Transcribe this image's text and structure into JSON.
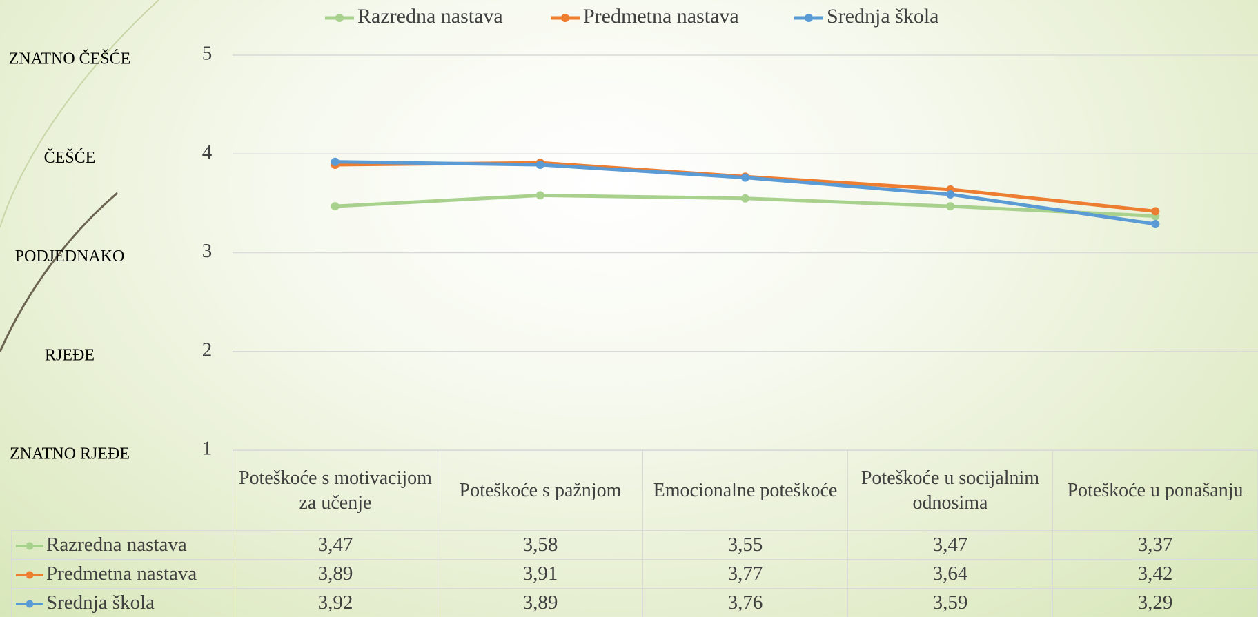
{
  "chart_data": {
    "type": "line",
    "categories": [
      "Poteškoće s motivacijom za učenje",
      "Poteškoće s pažnjom",
      "Emocionalne poteškoće",
      "Poteškoće u socijalnim odnosima",
      "Poteškoće u ponašanju"
    ],
    "series": [
      {
        "name": "Razredna nastava",
        "color": "#a9d18e",
        "values": [
          3.47,
          3.58,
          3.55,
          3.47,
          3.37
        ],
        "value_labels": [
          "3,47",
          "3,58",
          "3,55",
          "3,47",
          "3,37"
        ]
      },
      {
        "name": "Predmetna nastava",
        "color": "#ed7d31",
        "values": [
          3.89,
          3.91,
          3.77,
          3.64,
          3.42
        ],
        "value_labels": [
          "3,89",
          "3,91",
          "3,77",
          "3,64",
          "3,42"
        ]
      },
      {
        "name": "Srednja škola",
        "color": "#5b9bd5",
        "values": [
          3.92,
          3.89,
          3.76,
          3.59,
          3.29
        ],
        "value_labels": [
          "3,92",
          "3,89",
          "3,76",
          "3,59",
          "3,29"
        ]
      }
    ],
    "ylim": [
      1,
      5
    ],
    "yticks": [
      1,
      2,
      3,
      4,
      5
    ],
    "ytick_descriptions": [
      "ZNATNO RJEĐE",
      "RJEĐE",
      "PODJEDNAKO",
      "ČEŠĆE",
      "ZNATNO ČEŠĆE"
    ],
    "grid": true,
    "legend": "top",
    "data_table": true
  }
}
